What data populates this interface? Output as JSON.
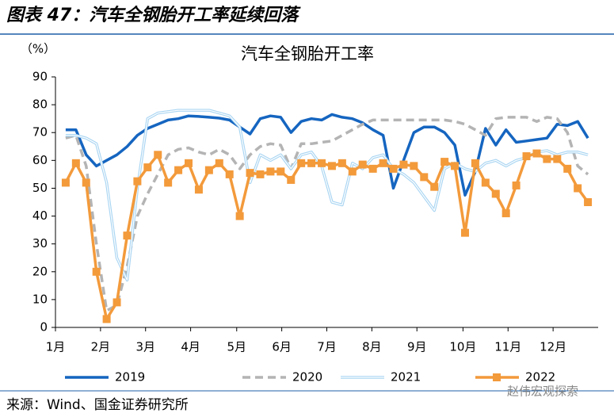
{
  "header": {
    "title": "图表 47：汽车全钢胎开工率延续回落"
  },
  "chart_data": {
    "type": "line",
    "title": "汽车全钢胎开工率",
    "y_label": "（%）",
    "x": [
      1,
      2,
      3,
      4,
      5,
      6,
      7,
      8,
      9,
      10,
      11,
      12,
      13,
      14,
      15,
      16,
      17,
      18,
      19,
      20,
      21,
      22,
      23,
      24,
      25,
      26,
      27,
      28,
      29,
      30,
      31,
      32,
      33,
      34,
      35,
      36,
      37,
      38,
      39,
      40,
      41,
      42,
      43,
      44,
      45,
      46,
      47,
      48,
      49,
      50,
      51,
      52
    ],
    "xlim": [
      0,
      53
    ],
    "xticks": [
      {
        "value": 0,
        "label": "1月"
      },
      {
        "value": 4.4,
        "label": "2月"
      },
      {
        "value": 8.8,
        "label": "3月"
      },
      {
        "value": 13.2,
        "label": "4月"
      },
      {
        "value": 17.7,
        "label": "5月"
      },
      {
        "value": 22.1,
        "label": "6月"
      },
      {
        "value": 26.5,
        "label": "7月"
      },
      {
        "value": 30.9,
        "label": "8月"
      },
      {
        "value": 35.3,
        "label": "9月"
      },
      {
        "value": 39.8,
        "label": "10月"
      },
      {
        "value": 44.2,
        "label": "11月"
      },
      {
        "value": 48.6,
        "label": "12月"
      }
    ],
    "ylim": [
      0,
      90
    ],
    "yticks": [
      0,
      10,
      20,
      30,
      40,
      50,
      60,
      70,
      80,
      90
    ],
    "grid": false,
    "legend": "bottom",
    "series": [
      {
        "name": "2019",
        "color": "#1565c0",
        "line_style": "solid",
        "values": [
          71,
          71,
          62,
          58,
          60,
          62,
          65,
          69,
          71.5,
          73,
          74.5,
          75,
          76,
          75.8,
          75.5,
          75.2,
          74.5,
          72,
          69.5,
          75,
          76,
          75.5,
          70,
          74,
          75,
          74.5,
          76.5,
          75.5,
          75,
          73.5,
          71,
          69,
          50,
          60,
          70,
          72,
          72,
          70,
          65.5,
          47.5,
          56,
          71.5,
          65.5,
          71,
          66.5,
          67,
          67.5,
          68,
          73,
          72.5,
          74,
          68
        ]
      },
      {
        "name": "2020",
        "color": "#b4b4b4",
        "line_style": "dashed",
        "values": [
          68,
          69,
          58,
          30,
          6,
          8,
          22,
          40,
          48,
          55,
          62,
          64,
          64.5,
          63,
          62,
          64,
          62,
          57,
          62,
          65,
          66,
          65.5,
          57,
          66,
          66,
          66.5,
          67,
          69,
          71,
          73,
          74.5,
          74.5,
          74.5,
          74.5,
          74.5,
          74.5,
          74.5,
          74.5,
          74,
          73,
          71,
          69,
          75,
          75.5,
          75.5,
          75.5,
          74,
          75.5,
          75,
          70,
          58,
          55
        ]
      },
      {
        "name": "2021",
        "color": "#a9d5f2",
        "line_style": "double",
        "values": [
          69,
          69,
          68,
          66,
          52,
          25,
          17,
          50,
          75,
          77,
          77.5,
          78,
          78,
          78,
          78,
          77,
          76,
          72,
          52,
          62,
          60,
          62,
          57,
          62,
          63,
          58,
          45,
          44,
          59,
          57,
          61,
          62,
          57,
          55,
          52,
          47,
          42,
          57,
          59,
          57,
          56,
          59,
          60,
          58,
          60,
          61,
          63,
          63.5,
          62,
          63,
          63,
          62
        ]
      },
      {
        "name": "2022",
        "color": "#f39a3b",
        "line_style": "marker",
        "values": [
          52,
          59,
          52,
          20,
          3,
          9,
          33,
          52.5,
          57.5,
          62,
          52,
          56.5,
          59,
          49.5,
          56.5,
          59,
          55,
          40,
          55.5,
          55,
          56,
          56,
          53,
          59,
          59,
          59,
          58,
          59,
          56,
          58.5,
          57,
          59,
          57,
          58.5,
          58,
          54,
          50.5,
          59.5,
          58,
          34,
          59,
          52,
          48,
          41,
          51,
          61.5,
          62.5,
          60.5,
          60.5,
          57,
          50,
          45
        ]
      }
    ]
  },
  "footer": {
    "source": "来源：Wind、国金证券研究所",
    "watermark": "赵伟宏观探索"
  }
}
